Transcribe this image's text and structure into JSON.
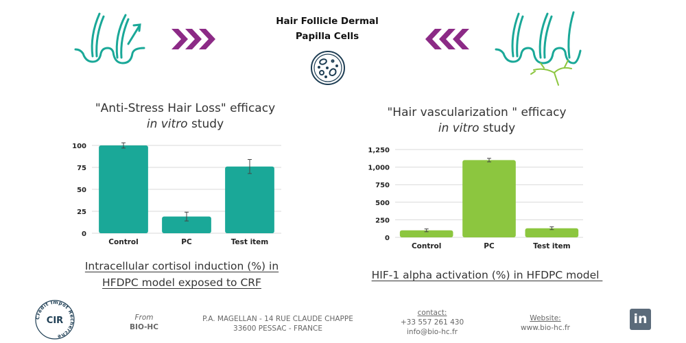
{
  "header": {
    "title_line1": "Hair Follicle Dermal",
    "title_line2": "Papilla Cells"
  },
  "colors": {
    "teal": "#1aa898",
    "green": "#8cc63f",
    "purple": "#8c2a86",
    "navy": "#1e3e54"
  },
  "left_chart": {
    "heading_line1": "\"Anti-Stress Hair Loss\" efficacy",
    "heading_italic": "in vitro",
    "heading_rest": " study",
    "caption_line1": "Intracellular cortisol induction (%) in",
    "caption_line2": "HFDPC model exposed to CRF"
  },
  "right_chart": {
    "heading_line1": "\"Hair vascularization \" efficacy",
    "heading_italic": "in vitro",
    "heading_rest": " study",
    "caption_line1": "HIF-1 alpha activation (%) in HFDPC model "
  },
  "chart_data": [
    {
      "type": "bar",
      "categories": [
        "Control",
        "PC",
        "Test item"
      ],
      "values": [
        100,
        19,
        76
      ],
      "errors": [
        3,
        5,
        8
      ],
      "ylim": [
        0,
        100
      ],
      "yticks": [
        "0",
        "25",
        "50",
        "75",
        "100"
      ],
      "ytick_values": [
        0,
        25,
        50,
        75,
        100
      ],
      "color": "#1aa898",
      "title": "",
      "xlabel": "",
      "ylabel": "",
      "grid": true
    },
    {
      "type": "bar",
      "categories": [
        "Control",
        "PC",
        "Test item"
      ],
      "values": [
        100,
        1100,
        130
      ],
      "errors": [
        20,
        25,
        20
      ],
      "ylim": [
        0,
        1250
      ],
      "yticks": [
        "0",
        "250",
        "500",
        "750",
        "1,000",
        "1,250"
      ],
      "ytick_values": [
        0,
        250,
        500,
        750,
        1000,
        1250
      ],
      "color": "#8cc63f",
      "title": "",
      "xlabel": "",
      "ylabel": "",
      "grid": true
    }
  ],
  "footer": {
    "cir_label": "CIR",
    "cir_ring_text": "Crédit Impôt Recherche",
    "from_label": "From",
    "from_company": "BIO-HC",
    "address_line1": "P.A. MAGELLAN - 14 RUE CLAUDE CHAPPE",
    "address_line2": "33600 PESSAC - FRANCE",
    "contact_label": "contact:",
    "contact_phone": "+33 557 261 430",
    "contact_email": "info@bio-hc.fr",
    "website_label": "Website:",
    "website_url": "www.bio-hc.fr",
    "linkedin_label": "in"
  }
}
